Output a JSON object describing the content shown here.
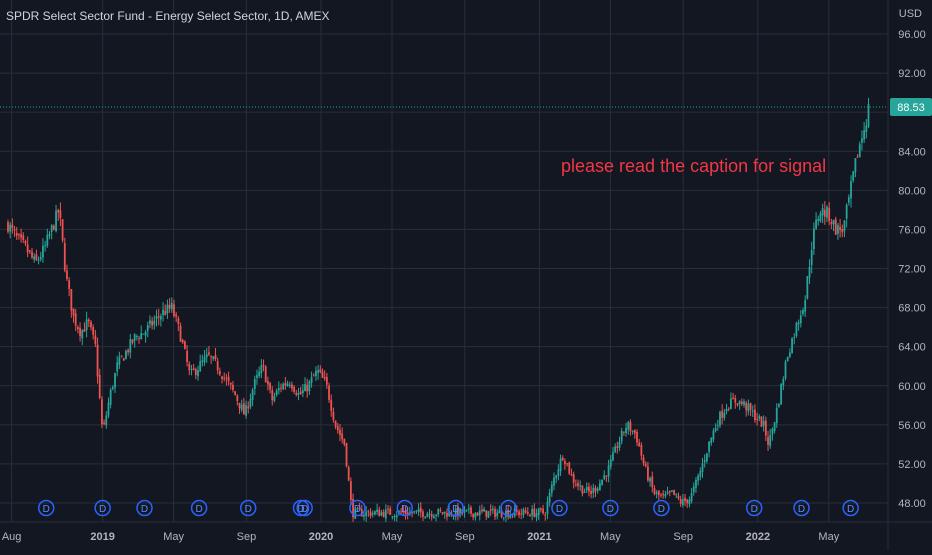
{
  "legend": {
    "title": "SPDR Select Sector Fund - Energy Select Sector, 1D, AMEX"
  },
  "price_scale": {
    "currency": "USD"
  },
  "annotation": {
    "text": "please read the caption for signal"
  },
  "colors": {
    "background": "#131722",
    "grid": "#2a2e39",
    "up": "#26a69a",
    "down": "#ef5350",
    "annotation": "#f23645",
    "last_price_bg": "#26a69a",
    "dividend_marker": "#2962ff"
  },
  "dividend_marker_label": "D",
  "chart_data": {
    "type": "candlestick",
    "title": "SPDR Select Sector Fund - Energy Select Sector, 1D, AMEX",
    "ylim": [
      46,
      98
    ],
    "y_ticks": [
      48,
      52,
      56,
      60,
      64,
      68,
      72,
      76,
      80,
      84,
      88,
      92,
      96
    ],
    "y_tick_labels": [
      "48.00",
      "52.00",
      "56.00",
      "60.00",
      "64.00",
      "68.00",
      "72.00",
      "76.00",
      "80.00",
      "84.00",
      "88.00",
      "92.00",
      "96.00"
    ],
    "x_tick_labels": [
      "Aug",
      "2019",
      "May",
      "Sep",
      "2020",
      "May",
      "Sep",
      "2021",
      "May",
      "Sep",
      "2022",
      "May"
    ],
    "x_tick_positions": [
      0.2,
      5.2,
      9.1,
      13.1,
      17.2,
      21.1,
      25.1,
      29.2,
      33.1,
      37.1,
      41.2,
      45.1
    ],
    "last_price": 88.53,
    "last_price_label": "88.53",
    "price_path": [
      [
        0,
        76.5
      ],
      [
        0.5,
        75
      ],
      [
        1,
        74
      ],
      [
        1.5,
        72.5
      ],
      [
        2,
        74
      ],
      [
        2.5,
        76.5
      ],
      [
        2.8,
        78
      ],
      [
        3.2,
        71
      ],
      [
        3.6,
        67
      ],
      [
        4,
        65.5
      ],
      [
        4.4,
        66.5
      ],
      [
        4.8,
        64
      ],
      [
        5.2,
        55
      ],
      [
        5.6,
        59
      ],
      [
        6,
        62
      ],
      [
        6.5,
        63.5
      ],
      [
        7,
        65
      ],
      [
        7.5,
        65.5
      ],
      [
        8,
        66.5
      ],
      [
        8.5,
        67.5
      ],
      [
        9,
        68
      ],
      [
        9.5,
        65
      ],
      [
        10,
        61
      ],
      [
        10.5,
        62
      ],
      [
        11,
        63
      ],
      [
        11.5,
        62
      ],
      [
        12,
        60.5
      ],
      [
        12.5,
        59
      ],
      [
        13,
        57
      ],
      [
        13.5,
        60
      ],
      [
        14,
        62
      ],
      [
        14.5,
        58.5
      ],
      [
        15,
        60
      ],
      [
        15.5,
        60.5
      ],
      [
        16,
        59
      ],
      [
        16.5,
        60
      ],
      [
        17,
        61.5
      ],
      [
        17.5,
        60
      ],
      [
        18,
        56
      ],
      [
        18.5,
        54
      ],
      [
        18.9,
        47
      ],
      [
        29.5,
        47
      ],
      [
        30,
        50.5
      ],
      [
        30.5,
        53
      ],
      [
        31,
        50.5
      ],
      [
        31.5,
        49.5
      ],
      [
        32,
        49
      ],
      [
        32.5,
        50
      ],
      [
        33,
        51.5
      ],
      [
        33.5,
        54
      ],
      [
        34,
        56
      ],
      [
        34.5,
        55
      ],
      [
        35,
        51.5
      ],
      [
        35.5,
        49
      ],
      [
        36,
        48.5
      ],
      [
        36.5,
        49
      ],
      [
        37,
        48
      ],
      [
        37.5,
        48.5
      ],
      [
        38,
        51
      ],
      [
        38.5,
        54
      ],
      [
        39,
        56.5
      ],
      [
        39.5,
        58
      ],
      [
        40,
        58.5
      ],
      [
        40.5,
        58
      ],
      [
        41,
        57
      ],
      [
        41.5,
        56
      ],
      [
        41.8,
        54
      ],
      [
        42.3,
        58
      ],
      [
        42.8,
        63
      ],
      [
        43.3,
        66
      ],
      [
        43.8,
        69
      ],
      [
        44.2,
        75
      ],
      [
        44.6,
        78
      ],
      [
        45.1,
        77.5
      ],
      [
        45.5,
        76
      ],
      [
        45.9,
        76
      ],
      [
        46.3,
        80
      ],
      [
        46.7,
        84
      ],
      [
        47,
        86
      ],
      [
        47.3,
        88.5
      ]
    ],
    "dividend_dates": [
      2.1,
      5.2,
      7.5,
      10.5,
      13.2,
      16.1,
      16.3,
      19.2,
      21.8,
      24.6,
      27.5,
      30.3,
      33.1,
      35.9,
      41.0,
      43.6,
      46.3
    ]
  }
}
